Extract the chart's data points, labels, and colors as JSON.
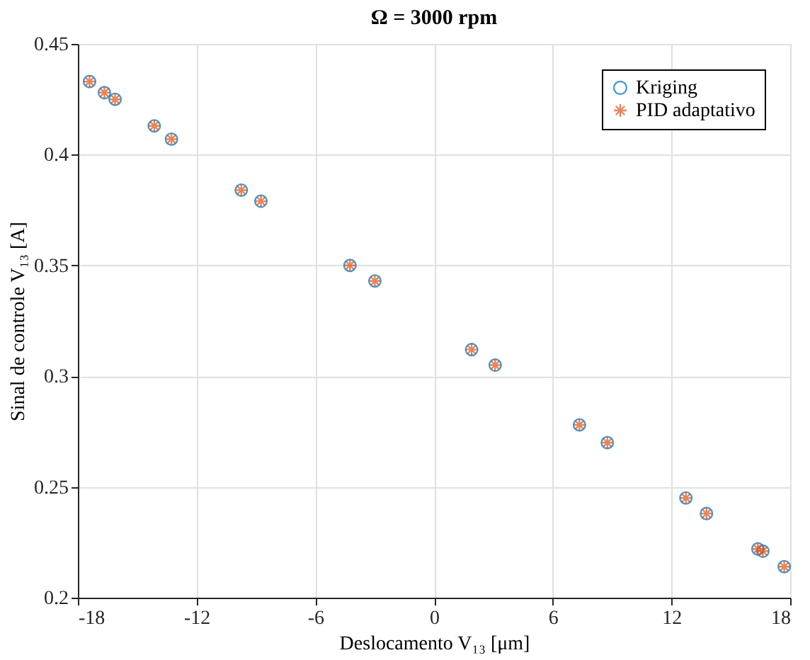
{
  "chart_data": {
    "type": "scatter",
    "title": "Ω = 3000 rpm",
    "xlabel": "Deslocamento V₁₃ [μm]",
    "ylabel": "Sinal de controle V₁₃ [A]",
    "x": [
      -17.41,
      -16.66,
      -16.12,
      -14.14,
      -13.27,
      -9.74,
      -8.75,
      -4.25,
      -2.99,
      1.9,
      3.09,
      7.35,
      8.76,
      12.73,
      13.77,
      16.37,
      16.62,
      17.7
    ],
    "series": [
      {
        "name": "Kriging",
        "color": "#0072bd",
        "marker": "circle",
        "values": [
          0.433,
          0.428,
          0.425,
          0.413,
          0.407,
          0.384,
          0.379,
          0.35,
          0.343,
          0.312,
          0.305,
          0.278,
          0.27,
          0.245,
          0.238,
          0.222,
          0.221,
          0.214
        ]
      },
      {
        "name": "PID adaptativo",
        "color": "#d95319",
        "marker": "cross",
        "values": [
          0.433,
          0.428,
          0.425,
          0.413,
          0.407,
          0.384,
          0.379,
          0.35,
          0.343,
          0.312,
          0.305,
          0.278,
          0.27,
          0.245,
          0.238,
          0.222,
          0.221,
          0.214
        ]
      }
    ],
    "xlim": [
      -18,
      18
    ],
    "xticks": [
      -18,
      -12,
      -6,
      0,
      6,
      12,
      18
    ],
    "ylim": [
      0.2,
      0.45
    ],
    "yticks": [
      0.2,
      0.25,
      0.3,
      0.35,
      0.4,
      0.45
    ],
    "grid": true,
    "legend": "top right"
  }
}
